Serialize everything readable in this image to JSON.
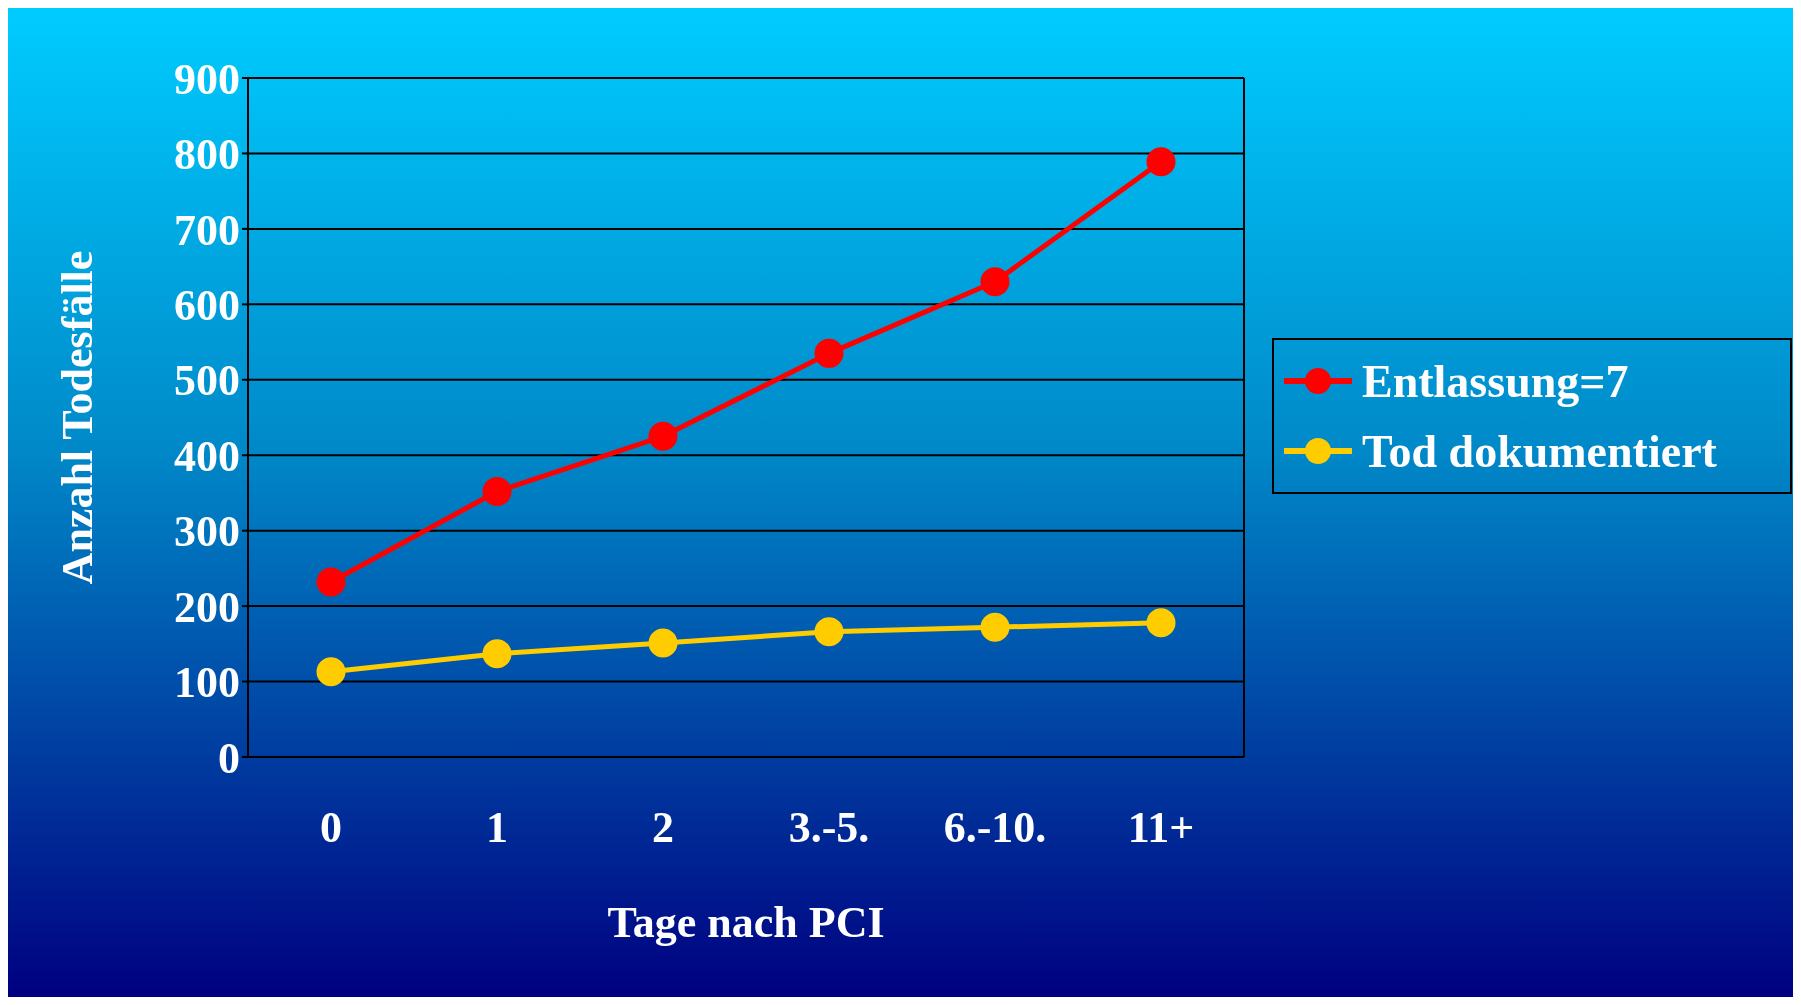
{
  "chart_data": {
    "type": "line",
    "xlabel": "Tage nach PCI",
    "ylabel": "Anzahl Todesfälle",
    "categories": [
      "0",
      "1",
      "2",
      "3.-5.",
      "6.-10.",
      "11+"
    ],
    "series": [
      {
        "name": "Entlassung=7",
        "color": "#ff0000",
        "values": [
          232,
          352,
          425,
          535,
          630,
          789
        ]
      },
      {
        "name": "Tod dokumentiert",
        "color": "#ffcc00",
        "values": [
          113,
          137,
          151,
          166,
          172,
          178
        ]
      }
    ],
    "ylim": [
      0,
      900
    ],
    "yticks": [
      0,
      100,
      200,
      300,
      400,
      500,
      600,
      700,
      800,
      900
    ],
    "grid": "y",
    "legend": "right",
    "marker": "circle",
    "line_style": "solid"
  }
}
